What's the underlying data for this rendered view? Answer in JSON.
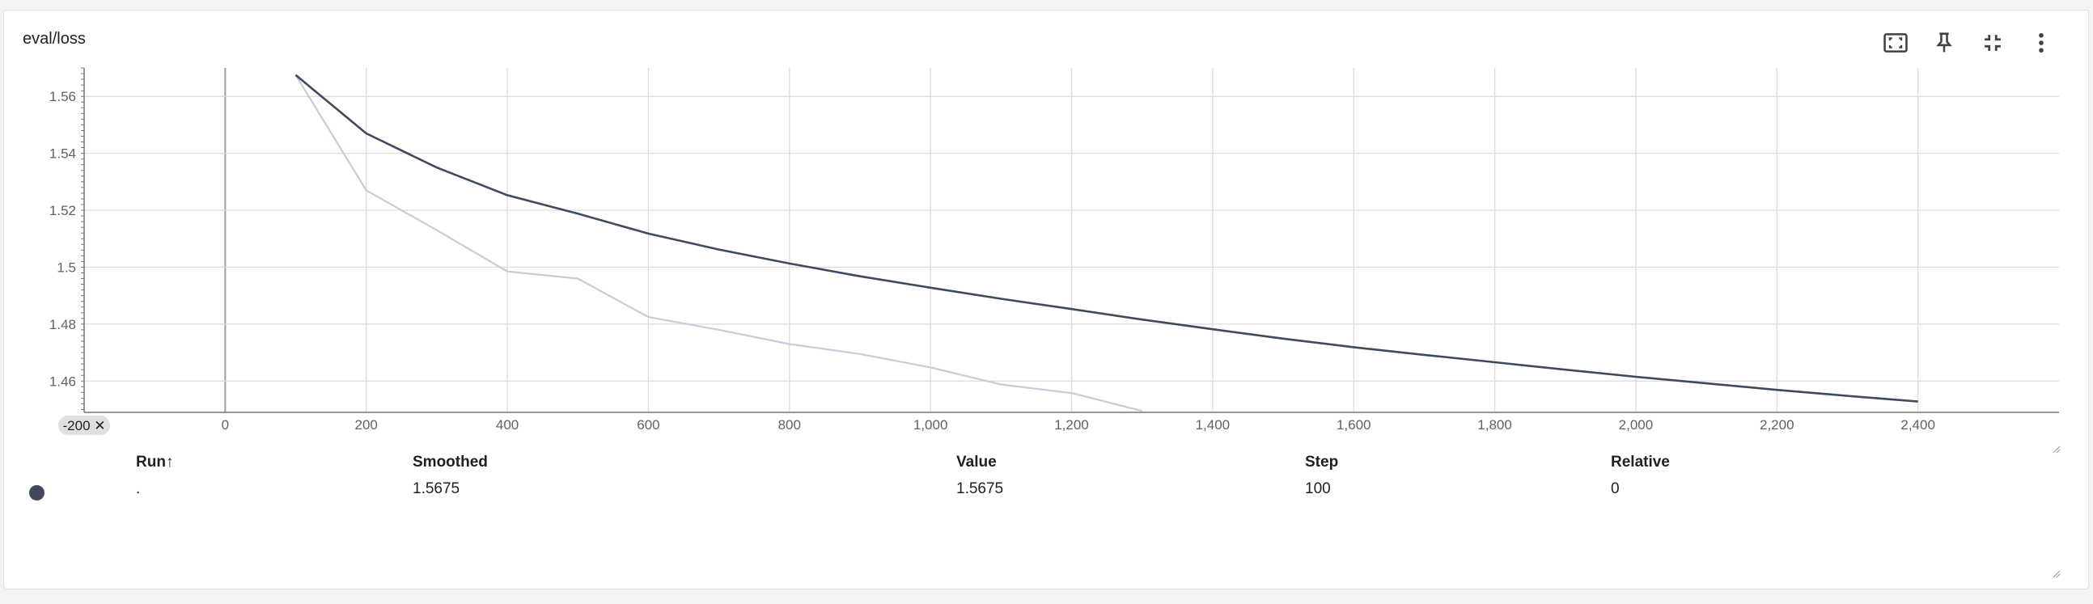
{
  "card": {
    "title": "eval/loss"
  },
  "toolbar": {
    "icons": [
      "fit-domain-icon",
      "pin-icon",
      "collapse-icon",
      "more-vert-icon"
    ]
  },
  "axis_badge": {
    "label": "-200 ✕"
  },
  "chart_data": {
    "type": "line",
    "title": "eval/loss",
    "xlabel": "",
    "ylabel": "",
    "xlim": [
      -200,
      2600
    ],
    "ylim": [
      1.449,
      1.57
    ],
    "x_ticks": [
      0,
      200,
      400,
      600,
      800,
      1000,
      1200,
      1400,
      1600,
      1800,
      2000,
      2200,
      2400
    ],
    "x_tick_labels": [
      "0",
      "200",
      "400",
      "600",
      "800",
      "1,000",
      "1,200",
      "1,400",
      "1,600",
      "1,800",
      "2,000",
      "2,200",
      "2,400"
    ],
    "y_ticks": [
      1.46,
      1.48,
      1.5,
      1.52,
      1.54,
      1.56
    ],
    "y_tick_labels": [
      "1.46",
      "1.48",
      "1.5",
      "1.52",
      "1.54",
      "1.56"
    ],
    "grid": true,
    "series": [
      {
        "role": "raw",
        "color": "#c9ccd8",
        "x": [
          100,
          200,
          300,
          400,
          500,
          600,
          700,
          800,
          900,
          1000,
          1100,
          1200,
          1300
        ],
        "y": [
          1.5675,
          1.527,
          1.513,
          1.4985,
          1.496,
          1.4825,
          1.478,
          1.473,
          1.4695,
          1.4648,
          1.4588,
          1.4558,
          1.4495
        ]
      },
      {
        "role": "smoothed",
        "color": "#3f4a5c",
        "x": [
          100,
          200,
          300,
          400,
          500,
          600,
          700,
          800,
          900,
          1000,
          1100,
          1200,
          1300,
          1400,
          1500,
          1600,
          1700,
          1800,
          1900,
          2000,
          2100,
          2200,
          2300,
          2400
        ],
        "y": [
          1.5675,
          1.547,
          1.535,
          1.5253,
          1.5188,
          1.5118,
          1.5062,
          1.5013,
          1.4968,
          1.4928,
          1.4889,
          1.4853,
          1.4816,
          1.4782,
          1.4749,
          1.4719,
          1.4692,
          1.4666,
          1.464,
          1.4615,
          1.4592,
          1.4569,
          1.4548,
          1.4528
        ]
      }
    ]
  },
  "table": {
    "headers": {
      "run": "Run",
      "run_sort": "↑",
      "smoothed": "Smoothed",
      "value": "Value",
      "step": "Step",
      "relative": "Relative"
    },
    "rows": [
      {
        "run": ".",
        "smoothed": "1.5675",
        "value": "1.5675",
        "step": "100",
        "relative": "0"
      }
    ]
  }
}
